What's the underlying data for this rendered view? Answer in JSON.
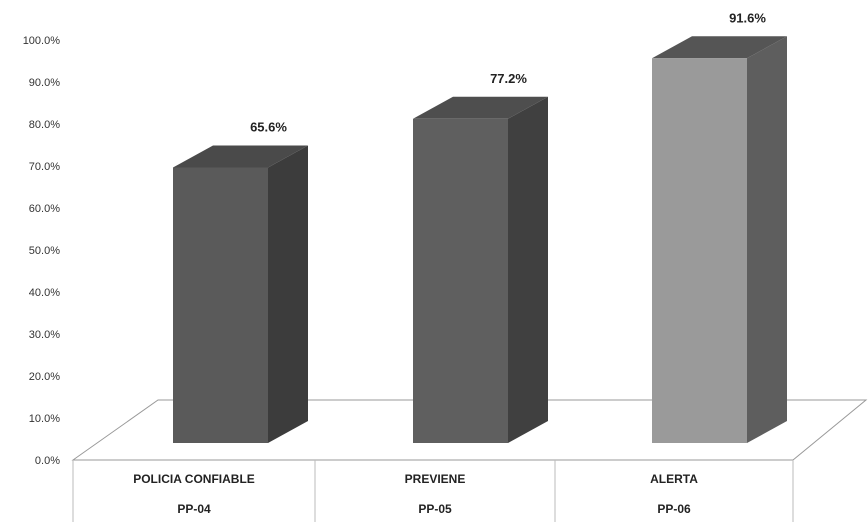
{
  "chart_data": {
    "type": "bar",
    "categories": [
      {
        "name": "POLICIA CONFIABLE",
        "code": "PP-04"
      },
      {
        "name": "PREVIENE",
        "code": "PP-05"
      },
      {
        "name": "ALERTA",
        "code": "PP-06"
      }
    ],
    "values": [
      65.6,
      77.2,
      91.6
    ],
    "data_labels": [
      "65.6%",
      "77.2%",
      "91.6%"
    ],
    "ylim": [
      0,
      100
    ],
    "yticks": [
      "0.0%",
      "10.0%",
      "20.0%",
      "30.0%",
      "40.0%",
      "50.0%",
      "60.0%",
      "70.0%",
      "80.0%",
      "90.0%",
      "100.0%"
    ],
    "style": "3d-column",
    "colors": {
      "bar_front": [
        "#5a5a5a",
        "#5f5f5f",
        "#9a9a9a"
      ],
      "bar_side": [
        "#3c3c3c",
        "#404040",
        "#5e5e5e"
      ],
      "bar_top": [
        "#4a4a4a",
        "#4e4e4e",
        "#555555"
      ],
      "floor_line": "#999999",
      "text": "#222222"
    }
  }
}
